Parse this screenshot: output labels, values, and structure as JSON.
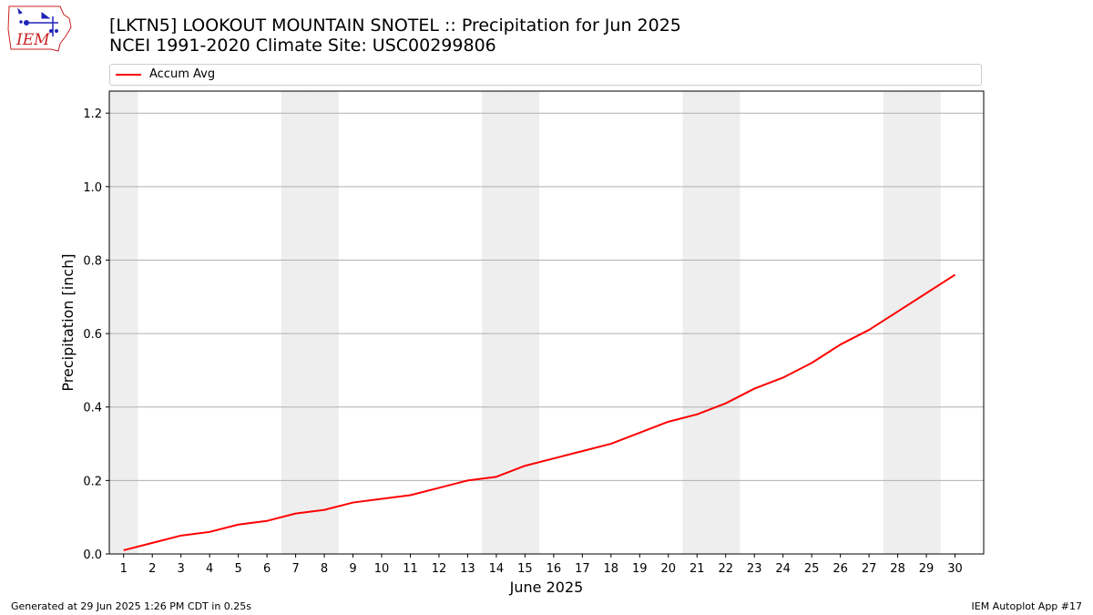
{
  "header": {
    "title": "[LKTN5] LOOKOUT MOUNTAIN SNOTEL :: Precipitation for Jun 2025",
    "subtitle": "NCEI 1991-2020 Climate Site: USC00299806",
    "logo_text": "IEM"
  },
  "footer": {
    "generated": "Generated at 29 Jun 2025 1:26 PM CDT in 0.25s",
    "app": "IEM Autoplot App #17"
  },
  "colors": {
    "line": "#ff0000",
    "weekend_band": "#eeeeee",
    "grid": "#b0b0b0",
    "logo": "#2222bb",
    "logo_text": "#cc2222"
  },
  "chart_data": {
    "type": "line",
    "x": [
      1,
      2,
      3,
      4,
      5,
      6,
      7,
      8,
      9,
      10,
      11,
      12,
      13,
      14,
      15,
      16,
      17,
      18,
      19,
      20,
      21,
      22,
      23,
      24,
      25,
      26,
      27,
      28,
      29,
      30
    ],
    "series": [
      {
        "name": "Accum Avg",
        "values": [
          0.01,
          0.03,
          0.05,
          0.06,
          0.08,
          0.09,
          0.11,
          0.12,
          0.14,
          0.15,
          0.16,
          0.18,
          0.2,
          0.21,
          0.24,
          0.26,
          0.28,
          0.3,
          0.33,
          0.36,
          0.38,
          0.41,
          0.45,
          0.48,
          0.52,
          0.57,
          0.61,
          0.66,
          0.71,
          0.76
        ],
        "color": "#ff0000"
      }
    ],
    "xlabel": "June 2025",
    "ylabel": "Precipitation [inch]",
    "xlim": [
      0.5,
      31.0
    ],
    "ylim": [
      0,
      1.26
    ],
    "yticks": [
      0.0,
      0.2,
      0.4,
      0.6,
      0.8,
      1.0,
      1.2
    ],
    "ytick_labels": [
      "0.0",
      "0.2",
      "0.4",
      "0.6",
      "0.8",
      "1.0",
      "1.2"
    ],
    "weekend_days": [
      1,
      7,
      8,
      14,
      15,
      21,
      22,
      28,
      29
    ],
    "grid": "horizontal",
    "legend": "top"
  }
}
